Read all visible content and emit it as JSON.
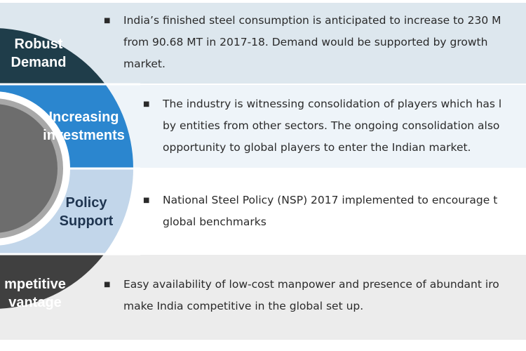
{
  "colors": {
    "robust_demand": "#1f3d4a",
    "increasing_investments": "#2b86cf",
    "policy_support": "#c2d6ea",
    "competitive_advantage": "#404040",
    "band_1": "#dde7ee",
    "band_2": "#ffffff",
    "band_3": "#ffffff",
    "band_4": "#ececec"
  },
  "rows": [
    {
      "title": "Robust\nDemand",
      "lines": [
        "India’s finished steel consumption is anticipated to increase to 230 M",
        "from 90.68 MT in 2017-18. Demand would be supported by growth",
        "market."
      ]
    },
    {
      "title": "Increasing\ninvestments",
      "lines": [
        "The industry is witnessing consolidation of players which has l",
        "by entities from other sectors. The ongoing consolidation also",
        "opportunity to global players to enter the Indian market."
      ]
    },
    {
      "title": "Policy\nSupport",
      "lines": [
        "National Steel Policy (NSP) 2017 implemented to encourage t",
        "global benchmarks"
      ]
    },
    {
      "title": "mpetitive\nvantage",
      "lines": [
        "Easy availability of low-cost manpower and presence of abundant iro",
        "make India competitive in the global set up."
      ]
    }
  ],
  "bullet_symbol": "■"
}
